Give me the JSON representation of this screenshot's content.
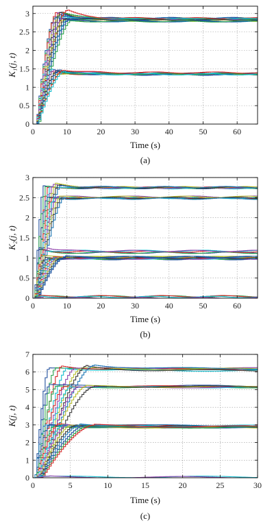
{
  "chart_data": [
    {
      "type": "line",
      "panel": "(a)",
      "xlabel": "Time (s)",
      "ylabel": "K₁(j, t)",
      "xlim": [
        0,
        66
      ],
      "ylim": [
        0,
        3.2
      ],
      "xticks": [
        0,
        10,
        20,
        30,
        40,
        50,
        60
      ],
      "yticks": [
        0,
        0.5,
        1,
        1.5,
        2,
        2.5,
        3
      ],
      "grid": true,
      "curve_style": "staircase",
      "groups": [
        {
          "steady_value": 2.85,
          "n_curves": 12,
          "rise_time_range": [
            6,
            10
          ],
          "overshoot_max": 3.1
        },
        {
          "steady_value": 2.8,
          "n_curves": 6,
          "rise_time_range": [
            8,
            11
          ],
          "overshoot_max": 2.85
        },
        {
          "steady_value": 1.37,
          "n_curves": 10,
          "rise_time_range": [
            5,
            9
          ],
          "overshoot_max": 1.5
        }
      ]
    },
    {
      "type": "line",
      "panel": "(b)",
      "xlabel": "Time (s)",
      "ylabel": "K₂(j, t)",
      "xlim": [
        0,
        66
      ],
      "ylim": [
        0,
        3
      ],
      "xticks": [
        0,
        10,
        20,
        30,
        40,
        50,
        60
      ],
      "yticks": [
        0,
        0.5,
        1,
        1.5,
        2,
        2.5,
        3
      ],
      "grid": true,
      "curve_style": "staircase",
      "groups": [
        {
          "steady_value": 2.75,
          "n_curves": 8,
          "rise_time_range": [
            3,
            8
          ],
          "overshoot_max": 2.85
        },
        {
          "steady_value": 2.5,
          "n_curves": 8,
          "rise_time_range": [
            4,
            9
          ],
          "overshoot_max": 2.5
        },
        {
          "steady_value": 1.15,
          "n_curves": 5,
          "rise_time_range": [
            2,
            4
          ],
          "overshoot_max": 1.25
        },
        {
          "steady_value": 1.0,
          "n_curves": 12,
          "rise_time_range": [
            3,
            9
          ],
          "overshoot_max": 1.02
        },
        {
          "steady_value": 0.02,
          "n_curves": 4,
          "rise_time_range": [
            1,
            3
          ],
          "overshoot_max": 0.05
        }
      ]
    },
    {
      "type": "line",
      "panel": "(c)",
      "xlabel": "Time (s)",
      "ylabel": "K(j, t)",
      "xlim": [
        0,
        30
      ],
      "ylim": [
        0,
        7
      ],
      "xticks": [
        0,
        5,
        10,
        15,
        20,
        25,
        30
      ],
      "yticks": [
        0,
        1,
        2,
        3,
        4,
        5,
        6,
        7
      ],
      "grid": true,
      "curve_style": "staircase",
      "groups": [
        {
          "steady_value": 6.15,
          "n_curves": 8,
          "rise_time_range": [
            2,
            8
          ],
          "overshoot_max": 6.4
        },
        {
          "steady_value": 5.15,
          "n_curves": 7,
          "rise_time_range": [
            2,
            8
          ],
          "overshoot_max": 5.2
        },
        {
          "steady_value": 2.9,
          "n_curves": 12,
          "rise_time_range": [
            1.5,
            8
          ],
          "overshoot_max": 3.05
        },
        {
          "steady_value": 0.05,
          "n_curves": 2,
          "rise_time_range": [
            1,
            2
          ],
          "overshoot_max": 0.1
        }
      ]
    }
  ],
  "captions": [
    "(a)",
    "(b)",
    "(c)"
  ],
  "colors": [
    "#1f4e9c",
    "#2aa34a",
    "#d62728",
    "#17becf",
    "#8e44ad",
    "#b5bd2e",
    "#3a3a3a",
    "#1f77b4"
  ]
}
